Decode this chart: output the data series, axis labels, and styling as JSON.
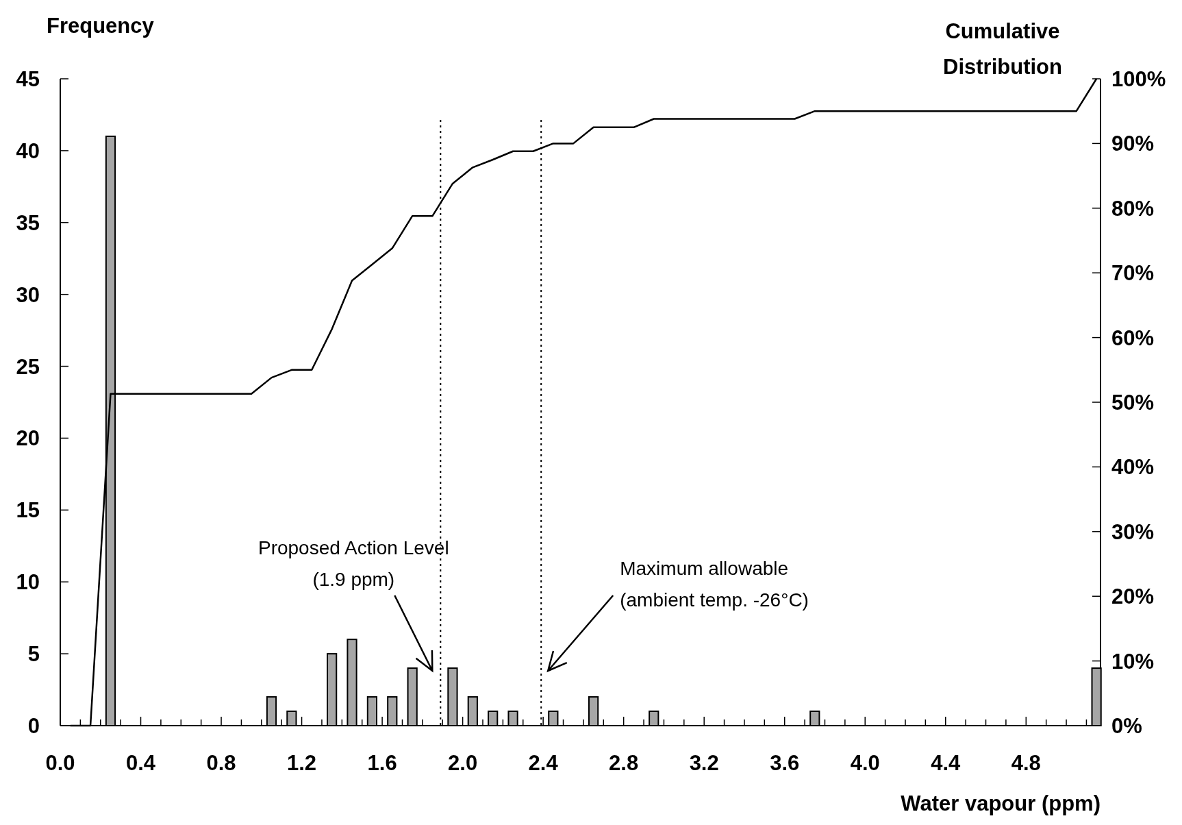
{
  "chart_data": {
    "type": "bar",
    "ylabel": "Frequency",
    "y2label": "Cumulative Distribution",
    "xlabel": "Water vapour (ppm)",
    "xlim": [
      0,
      5.17
    ],
    "xticks": [
      {
        "value": 0,
        "label": "0.0"
      },
      {
        "value": 0.1,
        "label": null
      },
      {
        "value": 0.2,
        "label": null
      },
      {
        "value": 0.3,
        "label": null
      },
      {
        "value": 0.4,
        "label": "0.4"
      },
      {
        "value": 0.5,
        "label": null
      },
      {
        "value": 0.6,
        "label": null
      },
      {
        "value": 0.7,
        "label": null
      },
      {
        "value": 0.8,
        "label": "0.8"
      },
      {
        "value": 0.9,
        "label": null
      },
      {
        "value": 1.0,
        "label": null
      },
      {
        "value": 1.1,
        "label": null
      },
      {
        "value": 1.2,
        "label": "1.2"
      },
      {
        "value": 1.3,
        "label": null
      },
      {
        "value": 1.4,
        "label": null
      },
      {
        "value": 1.5,
        "label": null
      },
      {
        "value": 1.6,
        "label": "1.6"
      },
      {
        "value": 1.7,
        "label": null
      },
      {
        "value": 1.8,
        "label": null
      },
      {
        "value": 1.9,
        "label": null
      },
      {
        "value": 2.0,
        "label": "2.0"
      },
      {
        "value": 2.1,
        "label": null
      },
      {
        "value": 2.2,
        "label": null
      },
      {
        "value": 2.3,
        "label": null
      },
      {
        "value": 2.4,
        "label": "2.4"
      },
      {
        "value": 2.5,
        "label": null
      },
      {
        "value": 2.6,
        "label": null
      },
      {
        "value": 2.7,
        "label": null
      },
      {
        "value": 2.8,
        "label": "2.8"
      },
      {
        "value": 2.9,
        "label": null
      },
      {
        "value": 3.0,
        "label": null
      },
      {
        "value": 3.1,
        "label": null
      },
      {
        "value": 3.2,
        "label": "3.2"
      },
      {
        "value": 3.3,
        "label": null
      },
      {
        "value": 3.4,
        "label": null
      },
      {
        "value": 3.5,
        "label": null
      },
      {
        "value": 3.6,
        "label": "3.6"
      },
      {
        "value": 3.7,
        "label": null
      },
      {
        "value": 3.8,
        "label": null
      },
      {
        "value": 3.9,
        "label": null
      },
      {
        "value": 4.0,
        "label": "4.0"
      },
      {
        "value": 4.1,
        "label": null
      },
      {
        "value": 4.2,
        "label": null
      },
      {
        "value": 4.3,
        "label": null
      },
      {
        "value": 4.4,
        "label": "4.4"
      },
      {
        "value": 4.5,
        "label": null
      },
      {
        "value": 4.6,
        "label": null
      },
      {
        "value": 4.7,
        "label": null
      },
      {
        "value": 4.8,
        "label": "4.8"
      },
      {
        "value": 4.9,
        "label": null
      },
      {
        "value": 5.0,
        "label": null
      },
      {
        "value": 5.1,
        "label": null
      }
    ],
    "ylim": [
      0,
      45
    ],
    "yticks": [
      0,
      5,
      10,
      15,
      20,
      25,
      30,
      35,
      40,
      45
    ],
    "y2lim": [
      0,
      100
    ],
    "y2ticks": [
      {
        "value": 0,
        "label": "0%"
      },
      {
        "value": 10,
        "label": "10%"
      },
      {
        "value": 20,
        "label": "20%"
      },
      {
        "value": 30,
        "label": "30%"
      },
      {
        "value": 40,
        "label": "40%"
      },
      {
        "value": 50,
        "label": "50%"
      },
      {
        "value": 60,
        "label": "60%"
      },
      {
        "value": 70,
        "label": "70%"
      },
      {
        "value": 80,
        "label": "80%"
      },
      {
        "value": 90,
        "label": "90%"
      },
      {
        "value": 100,
        "label": "100%"
      }
    ],
    "series": [
      {
        "color": "#a6a6a6",
        "x": [
          0.25,
          1.05,
          1.15,
          1.35,
          1.45,
          1.55,
          1.65,
          1.75,
          1.95,
          2.05,
          2.15,
          2.25,
          2.45,
          2.65,
          2.95,
          3.75,
          5.15
        ],
        "values": [
          41,
          2,
          1,
          5,
          6,
          2,
          2,
          4,
          4,
          2,
          1,
          1,
          1,
          2,
          1,
          1,
          4
        ]
      },
      {
        "type": "line",
        "axis": "y2",
        "color": "#000000",
        "x": [
          0.05,
          0.15,
          0.25,
          0.95,
          1.05,
          1.15,
          1.25,
          1.35,
          1.45,
          1.55,
          1.65,
          1.75,
          1.85,
          1.95,
          2.05,
          2.15,
          2.25,
          2.35,
          2.45,
          2.55,
          2.65,
          2.75,
          2.85,
          2.95,
          3.65,
          3.75,
          5.05,
          5.15
        ],
        "values": [
          0,
          0,
          51.3,
          51.3,
          53.8,
          55,
          55,
          61.3,
          68.8,
          71.3,
          73.8,
          78.8,
          78.8,
          83.8,
          86.3,
          87.5,
          88.8,
          88.8,
          90,
          90,
          92.5,
          92.5,
          92.5,
          93.8,
          93.8,
          95,
          95,
          100
        ]
      }
    ],
    "ref_lines": [
      {
        "axis": "x",
        "value": 1.89,
        "line_style": "dotted",
        "color": "#000000"
      },
      {
        "axis": "x",
        "value": 2.39,
        "line_style": "dotted",
        "color": "#000000"
      }
    ],
    "annotations": [
      "Proposed Action Level\n(1.9 ppm)",
      "Maximum allowable\n(ambient temp. -26°C)"
    ]
  }
}
